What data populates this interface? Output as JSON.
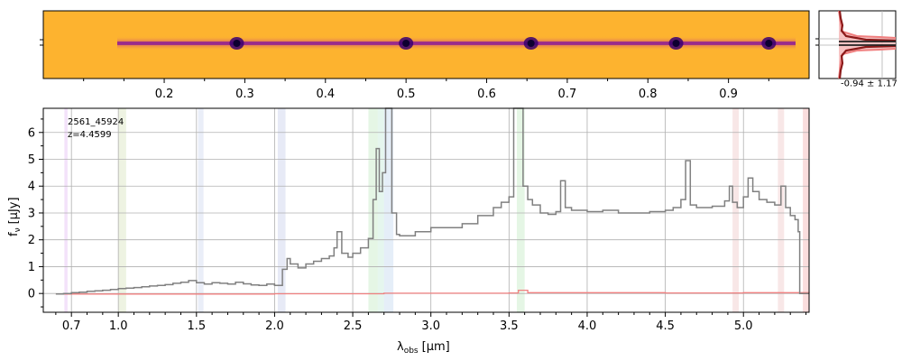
{
  "chart_data": [
    {
      "type": "heatmap",
      "panel": "2d-spectrum",
      "colormap": "plasma-inverted",
      "top_tick_labels": [
        "0.2",
        "0.3",
        "0.4",
        "0.5",
        "0.6",
        "0.7",
        "0.8",
        "0.9"
      ],
      "top_tick_values": [
        0.2,
        0.3,
        0.4,
        0.5,
        0.6,
        0.7,
        0.8,
        0.9
      ],
      "xrange": [
        0.05,
        1.0
      ],
      "bright_emission_x": [
        0.29,
        0.5,
        0.655,
        0.835,
        0.95
      ]
    },
    {
      "type": "line",
      "panel": "profile",
      "annotation": "-0.94 ± 1.17",
      "colors": {
        "profile": "#8b1a1a",
        "model": "#f08080",
        "fill": "#f4b4b4",
        "trace": "#222222"
      }
    },
    {
      "type": "line",
      "panel": "1d-spectrum",
      "annotation_id": "2561_45924",
      "annotation_z": "z=4.4599",
      "xlabel_main": "λ",
      "xlabel_sub": "obs",
      "xlabel_unit": "[μm]",
      "ylabel_main": "f",
      "ylabel_sub": "ν",
      "ylabel_unit": "[μJy]",
      "x_ticks": [
        0.7,
        1.0,
        1.5,
        2.0,
        2.5,
        3.0,
        3.5,
        4.0,
        4.5,
        5.0
      ],
      "x_tick_labels": [
        "0.7",
        "1.0",
        "1.5",
        "2.0",
        "2.5",
        "3.0",
        "3.5",
        "4.0",
        "4.5",
        "5.0"
      ],
      "y_ticks": [
        0,
        1,
        2,
        3,
        4,
        5,
        6
      ],
      "y_tick_labels": [
        "0",
        "1",
        "2",
        "3",
        "4",
        "5",
        "6"
      ],
      "ylim": [
        -0.7,
        6.9
      ],
      "grid": true,
      "spectrum_color": "#808080",
      "error_color": "#f08080",
      "bands": [
        {
          "x0": 0.655,
          "x1": 0.675,
          "color": "#d8a0f0"
        },
        {
          "x0": 1.0,
          "x1": 1.05,
          "color": "#c8d8a0"
        },
        {
          "x0": 1.51,
          "x1": 1.545,
          "color": "#b8c8e8"
        },
        {
          "x0": 2.02,
          "x1": 2.07,
          "color": "#b0b8e0"
        },
        {
          "x0": 2.6,
          "x1": 2.66,
          "color": "#a8e0a8"
        },
        {
          "x0": 2.66,
          "x1": 2.7,
          "color": "#a8e0c8"
        },
        {
          "x0": 2.7,
          "x1": 2.76,
          "color": "#a8c8e8"
        },
        {
          "x0": 3.55,
          "x1": 3.6,
          "color": "#a8e0a8"
        },
        {
          "x0": 4.93,
          "x1": 4.97,
          "color": "#e8b0b0"
        },
        {
          "x0": 5.22,
          "x1": 5.26,
          "color": "#e8b0b0"
        },
        {
          "x0": 5.38,
          "x1": 5.42,
          "color": "#f09090"
        }
      ],
      "spectrum": [
        [
          0.6,
          -0.02
        ],
        [
          0.65,
          0.0
        ],
        [
          0.7,
          0.03
        ],
        [
          0.75,
          0.05
        ],
        [
          0.8,
          0.08
        ],
        [
          0.85,
          0.1
        ],
        [
          0.9,
          0.12
        ],
        [
          0.95,
          0.15
        ],
        [
          1.0,
          0.18
        ],
        [
          1.05,
          0.2
        ],
        [
          1.1,
          0.22
        ],
        [
          1.15,
          0.25
        ],
        [
          1.2,
          0.28
        ],
        [
          1.25,
          0.3
        ],
        [
          1.3,
          0.33
        ],
        [
          1.35,
          0.38
        ],
        [
          1.4,
          0.42
        ],
        [
          1.45,
          0.48
        ],
        [
          1.5,
          0.4
        ],
        [
          1.55,
          0.35
        ],
        [
          1.6,
          0.4
        ],
        [
          1.65,
          0.38
        ],
        [
          1.7,
          0.35
        ],
        [
          1.75,
          0.42
        ],
        [
          1.8,
          0.36
        ],
        [
          1.85,
          0.32
        ],
        [
          1.9,
          0.3
        ],
        [
          1.95,
          0.35
        ],
        [
          2.0,
          0.3
        ],
        [
          2.05,
          0.9
        ],
        [
          2.08,
          1.3
        ],
        [
          2.1,
          1.1
        ],
        [
          2.15,
          0.95
        ],
        [
          2.2,
          1.1
        ],
        [
          2.25,
          1.2
        ],
        [
          2.3,
          1.3
        ],
        [
          2.35,
          1.4
        ],
        [
          2.38,
          1.7
        ],
        [
          2.4,
          2.3
        ],
        [
          2.43,
          1.5
        ],
        [
          2.47,
          1.35
        ],
        [
          2.5,
          1.5
        ],
        [
          2.55,
          1.7
        ],
        [
          2.6,
          2.05
        ],
        [
          2.63,
          3.5
        ],
        [
          2.65,
          5.4
        ],
        [
          2.67,
          3.8
        ],
        [
          2.69,
          4.5
        ],
        [
          2.71,
          6.9
        ],
        [
          2.73,
          6.9
        ],
        [
          2.75,
          3.0
        ],
        [
          2.78,
          2.2
        ],
        [
          2.8,
          2.15
        ],
        [
          2.9,
          2.3
        ],
        [
          3.0,
          2.45
        ],
        [
          3.1,
          2.45
        ],
        [
          3.2,
          2.6
        ],
        [
          3.3,
          2.9
        ],
        [
          3.4,
          3.2
        ],
        [
          3.45,
          3.4
        ],
        [
          3.5,
          3.6
        ],
        [
          3.53,
          6.9
        ],
        [
          3.57,
          6.9
        ],
        [
          3.59,
          4.0
        ],
        [
          3.62,
          3.5
        ],
        [
          3.65,
          3.3
        ],
        [
          3.7,
          3.0
        ],
        [
          3.75,
          2.95
        ],
        [
          3.8,
          3.05
        ],
        [
          3.83,
          4.2
        ],
        [
          3.86,
          3.2
        ],
        [
          3.9,
          3.1
        ],
        [
          4.0,
          3.05
        ],
        [
          4.1,
          3.1
        ],
        [
          4.2,
          3.0
        ],
        [
          4.3,
          3.0
        ],
        [
          4.4,
          3.05
        ],
        [
          4.5,
          3.1
        ],
        [
          4.55,
          3.2
        ],
        [
          4.6,
          3.5
        ],
        [
          4.63,
          4.95
        ],
        [
          4.66,
          3.3
        ],
        [
          4.7,
          3.2
        ],
        [
          4.8,
          3.25
        ],
        [
          4.88,
          3.45
        ],
        [
          4.91,
          4.0
        ],
        [
          4.93,
          3.4
        ],
        [
          4.96,
          3.2
        ],
        [
          5.0,
          3.6
        ],
        [
          5.03,
          4.3
        ],
        [
          5.06,
          3.8
        ],
        [
          5.1,
          3.5
        ],
        [
          5.15,
          3.4
        ],
        [
          5.2,
          3.3
        ],
        [
          5.24,
          4.0
        ],
        [
          5.27,
          3.2
        ],
        [
          5.3,
          2.9
        ],
        [
          5.33,
          2.75
        ],
        [
          5.35,
          2.3
        ],
        [
          5.36,
          0.0
        ],
        [
          5.42,
          0.0
        ]
      ],
      "error": [
        [
          0.6,
          -0.02
        ],
        [
          2.0,
          -0.01
        ],
        [
          2.7,
          0.01
        ],
        [
          3.5,
          0.02
        ],
        [
          3.56,
          0.12
        ],
        [
          3.62,
          0.03
        ],
        [
          4.5,
          0.02
        ],
        [
          5.0,
          0.03
        ],
        [
          5.42,
          0.02
        ]
      ]
    }
  ]
}
